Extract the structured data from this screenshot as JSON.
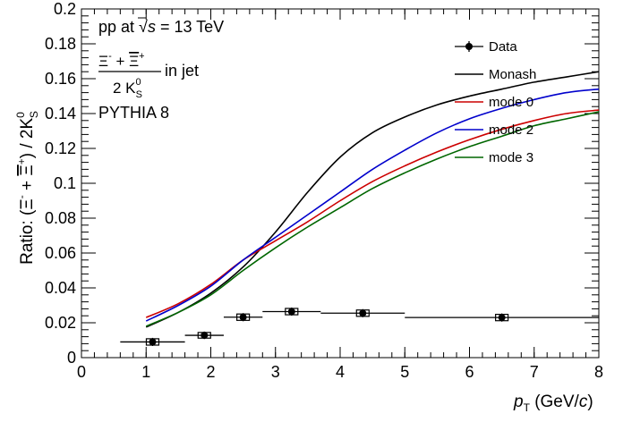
{
  "chart_data": {
    "type": "line",
    "ylabel_prefix": "Ratio: (",
    "ylabel_xi_minus": "Ξ",
    "ylabel_minus_sup": "-",
    "ylabel_plus": " + ",
    "ylabel_xi_plus": "Ξ",
    "ylabel_plus_sup": "+",
    "ylabel_close": ") / 2K",
    "ylabel_k_sup": "0",
    "ylabel_k_sub": "S",
    "xlabel_var": "p",
    "xlabel_sub": "T",
    "xlabel_unit_open": " (GeV/",
    "xlabel_unit_c": "c",
    "xlabel_unit_close": ")",
    "xlim": [
      0,
      8
    ],
    "ylim": [
      0,
      0.2
    ],
    "x_ticks": [
      0,
      1,
      2,
      3,
      4,
      5,
      6,
      7,
      8
    ],
    "x_tick_labels": [
      "0",
      "1",
      "2",
      "3",
      "4",
      "5",
      "6",
      "7",
      "8"
    ],
    "y_ticks": [
      0,
      0.02,
      0.04,
      0.06,
      0.08,
      0.1,
      0.12,
      0.14,
      0.16,
      0.18,
      0.2
    ],
    "y_tick_labels": [
      "0",
      "0.02",
      "0.04",
      "0.06",
      "0.08",
      "0.1",
      "0.12",
      "0.14",
      "0.16",
      "0.18",
      "0.2"
    ],
    "annotations": {
      "line1_prefix": "pp at ",
      "sqrt_sym": "√",
      "sqrt_var": "s",
      "line1_suffix": " = 13 TeV",
      "frac_num_xi1": "Ξ",
      "frac_num_sup1": "-",
      "frac_num_plus": " + ",
      "frac_num_xi2": "Ξ",
      "frac_num_sup2": "+",
      "frac_den": "2 K",
      "frac_den_sup": "0",
      "frac_den_sub": "S",
      "frac_suffix": "in jet",
      "generator": "PYTHIA 8"
    },
    "legend_position": "top-right",
    "data": {
      "name": "Data",
      "color": "#000000",
      "points": [
        {
          "x": 1.1,
          "y": 0.009,
          "xerr": [
            0.6,
            1.6
          ],
          "yerr": 0.0008
        },
        {
          "x": 1.9,
          "y": 0.0128,
          "xerr": [
            1.6,
            2.2
          ],
          "yerr": 0.0006
        },
        {
          "x": 2.5,
          "y": 0.0232,
          "xerr": [
            2.2,
            2.8
          ],
          "yerr": 0.0008
        },
        {
          "x": 3.25,
          "y": 0.0264,
          "xerr": [
            2.8,
            3.7
          ],
          "yerr": 0.0008
        },
        {
          "x": 4.35,
          "y": 0.0255,
          "xerr": [
            3.7,
            5.0
          ],
          "yerr": 0.0008
        },
        {
          "x": 6.5,
          "y": 0.023,
          "xerr": [
            5.0,
            8.0
          ],
          "yerr": 0.0008
        }
      ]
    },
    "series": [
      {
        "name": "Monash",
        "color": "#000000",
        "x": [
          1.0,
          1.5,
          2.0,
          2.5,
          3.0,
          3.5,
          4.0,
          4.5,
          5.0,
          5.5,
          6.0,
          6.5,
          7.0,
          7.5,
          8.0
        ],
        "y": [
          0.0175,
          0.026,
          0.037,
          0.052,
          0.072,
          0.095,
          0.115,
          0.129,
          0.138,
          0.145,
          0.15,
          0.154,
          0.158,
          0.161,
          0.164
        ]
      },
      {
        "name": "mode 0",
        "color": "#cc0000",
        "x": [
          1.0,
          1.5,
          2.0,
          2.5,
          3.0,
          3.5,
          4.0,
          4.5,
          5.0,
          5.5,
          6.0,
          6.5,
          7.0,
          7.5,
          8.0
        ],
        "y": [
          0.023,
          0.031,
          0.042,
          0.056,
          0.067,
          0.078,
          0.09,
          0.101,
          0.11,
          0.118,
          0.125,
          0.131,
          0.136,
          0.14,
          0.142
        ]
      },
      {
        "name": "mode 2",
        "color": "#0000cc",
        "x": [
          1.0,
          1.5,
          2.0,
          2.5,
          3.0,
          3.5,
          4.0,
          4.5,
          5.0,
          5.5,
          6.0,
          6.5,
          7.0,
          7.5,
          8.0
        ],
        "y": [
          0.021,
          0.03,
          0.041,
          0.056,
          0.069,
          0.082,
          0.095,
          0.108,
          0.119,
          0.129,
          0.137,
          0.143,
          0.148,
          0.152,
          0.154
        ]
      },
      {
        "name": "mode 3",
        "color": "#006600",
        "x": [
          1.0,
          1.5,
          2.0,
          2.5,
          3.0,
          3.5,
          4.0,
          4.5,
          5.0,
          5.5,
          6.0,
          6.5,
          7.0,
          7.5,
          8.0
        ],
        "y": [
          0.018,
          0.026,
          0.036,
          0.05,
          0.063,
          0.075,
          0.086,
          0.097,
          0.106,
          0.114,
          0.121,
          0.127,
          0.133,
          0.137,
          0.141
        ]
      }
    ]
  }
}
